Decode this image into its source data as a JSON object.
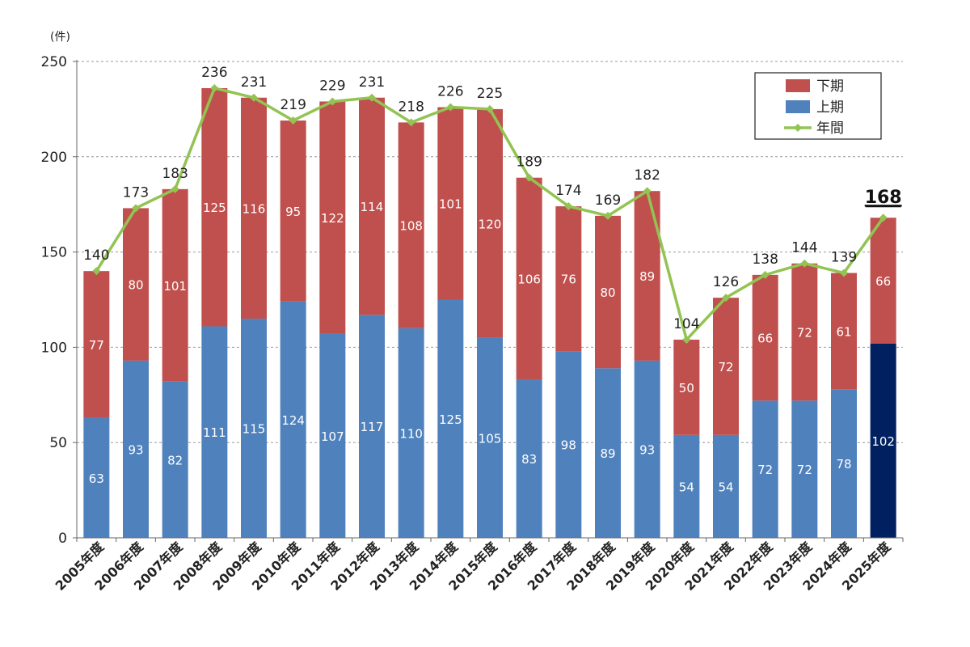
{
  "chart_data": {
    "type": "bar",
    "stacked": true,
    "unit_label": "(件)",
    "categories": [
      "2005年度",
      "2006年度",
      "2007年度",
      "2008年度",
      "2009年度",
      "2010年度",
      "2011年度",
      "2012年度",
      "2013年度",
      "2014年度",
      "2015年度",
      "2016年度",
      "2017年度",
      "2018年度",
      "2019年度",
      "2020年度",
      "2021年度",
      "2022年度",
      "2023年度",
      "2024年度",
      "2025年度"
    ],
    "series": [
      {
        "name": "上期",
        "color": "#4f81bd",
        "values": [
          63,
          93,
          82,
          111,
          115,
          124,
          107,
          117,
          110,
          125,
          105,
          83,
          98,
          89,
          93,
          54,
          54,
          72,
          72,
          78,
          102
        ]
      },
      {
        "name": "下期",
        "color": "#c0504d",
        "values": [
          77,
          80,
          101,
          125,
          116,
          95,
          122,
          114,
          108,
          101,
          120,
          106,
          76,
          80,
          89,
          50,
          72,
          66,
          72,
          61,
          66
        ]
      }
    ],
    "line_series": {
      "name": "年間",
      "color": "#92c353",
      "values": [
        140,
        173,
        183,
        236,
        231,
        219,
        229,
        231,
        218,
        226,
        225,
        189,
        174,
        169,
        182,
        104,
        126,
        138,
        144,
        139,
        168
      ]
    },
    "highlight": {
      "index": 20,
      "color": "#002060"
    },
    "yticks": [
      0,
      50,
      100,
      150,
      200,
      250
    ],
    "ylim": [
      0,
      250
    ],
    "grid": true,
    "legend": {
      "position": "top-right",
      "order": [
        "下期",
        "上期",
        "年間"
      ]
    }
  }
}
